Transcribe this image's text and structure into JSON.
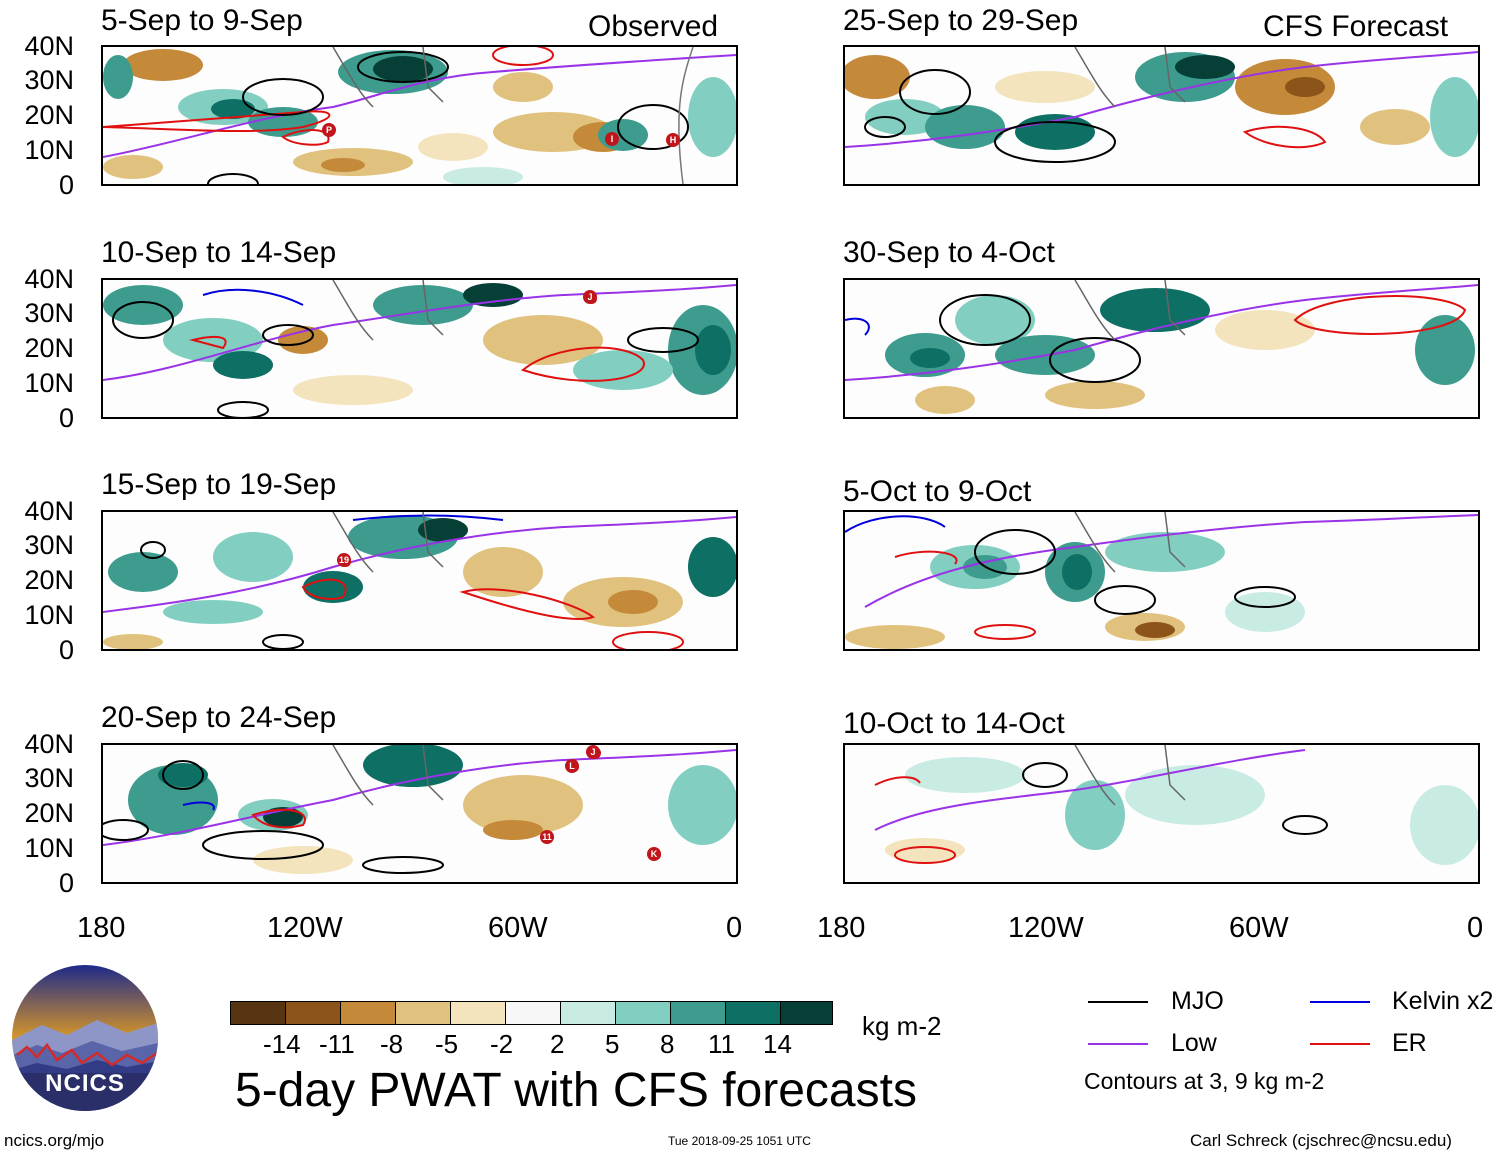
{
  "headers": {
    "left": "Observed",
    "right": "CFS Forecast"
  },
  "panels": [
    {
      "title": "5-Sep to 9-Sep",
      "storms": [
        "P",
        "I",
        "H"
      ]
    },
    {
      "title": "10-Sep to 14-Sep",
      "storms": [
        "J"
      ]
    },
    {
      "title": "15-Sep to 19-Sep",
      "storms": [
        "19"
      ]
    },
    {
      "title": "20-Sep to 24-Sep",
      "storms": [
        "J",
        "L",
        "11",
        "K"
      ]
    },
    {
      "title": "25-Sep to 29-Sep",
      "storms": []
    },
    {
      "title": "30-Sep to 4-Oct",
      "storms": []
    },
    {
      "title": "5-Oct to 9-Oct",
      "storms": []
    },
    {
      "title": "10-Oct to 14-Oct",
      "storms": []
    }
  ],
  "y_axis_labels": [
    "40N",
    "30N",
    "20N",
    "10N",
    "0"
  ],
  "x_axis_labels": [
    "180",
    "120W",
    "60W",
    "0"
  ],
  "colorbar": {
    "ticks": [
      "-14",
      "-11",
      "-8",
      "-5",
      "-2",
      "2",
      "5",
      "8",
      "11",
      "14"
    ],
    "unit": "kg m-2",
    "colors": [
      "#573512",
      "#8c5418",
      "#c48a3a",
      "#e0c27e",
      "#f3e4bd",
      "#f7f7f7",
      "#c8ebe4",
      "#82cfc2",
      "#3d9c8e",
      "#0e6f64",
      "#053f36"
    ]
  },
  "legend": {
    "items": [
      {
        "label": "MJO",
        "color": "#000000"
      },
      {
        "label": "Kelvin x2",
        "color": "#0000dd"
      },
      {
        "label": "Low",
        "color": "#9a32e8"
      },
      {
        "label": "ER",
        "color": "#e01010"
      }
    ],
    "note": "Contours at 3, 9 kg m-2"
  },
  "title": "5-day PWAT with CFS forecasts",
  "logo_text": "NCICS",
  "footer": {
    "url": "ncics.org/mjo",
    "timestamp": "Tue 2018-09-25 1051 UTC",
    "credit": "Carl Schreck (cjschrec@ncsu.edu)"
  }
}
